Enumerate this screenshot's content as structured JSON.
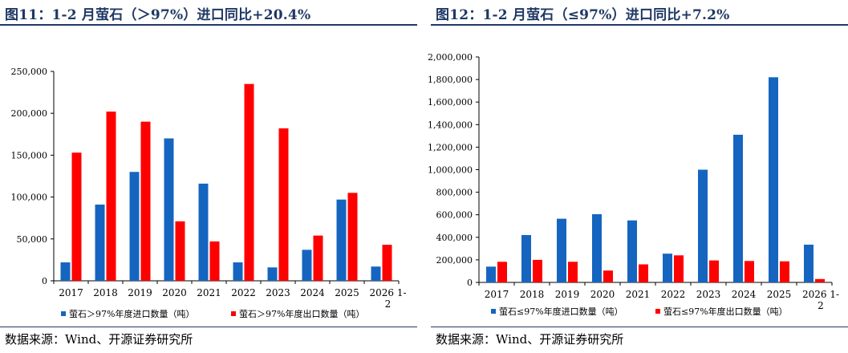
{
  "colors": {
    "blue": "#1565C0",
    "red": "#FF0000",
    "title": "#1f3864"
  },
  "left": {
    "fig_title": "图11：1-2 月萤石（＞97%）进口同比+20.4%",
    "source": "数据来源：Wind、开源证券研究所",
    "chart_data": {
      "type": "bar",
      "categories": [
        "2017",
        "2018",
        "2019",
        "2020",
        "2021",
        "2022",
        "2023",
        "2024",
        "2025",
        "2026 1-2"
      ],
      "series": [
        {
          "name": "萤石＞97%年度进口数量（吨）",
          "values": [
            22000,
            91000,
            130000,
            170000,
            116000,
            22000,
            16000,
            37000,
            97000,
            17000
          ]
        },
        {
          "name": "萤石＞97%年度出口数量（吨）",
          "values": [
            153000,
            202000,
            190000,
            71000,
            47000,
            235000,
            182000,
            54000,
            105000,
            43000
          ]
        }
      ],
      "ylim": [
        0,
        250000
      ],
      "yticks": [
        "0",
        "50,000",
        "100,000",
        "150,000",
        "200,000",
        "250,000"
      ],
      "grid": false,
      "legend_position": "bottom"
    }
  },
  "right": {
    "fig_title": "图12：1-2 月萤石（≤97%）进口同比+7.2%",
    "source": "数据来源：Wind、开源证券研究所",
    "chart_data": {
      "type": "bar",
      "categories": [
        "2017",
        "2018",
        "2019",
        "2020",
        "2021",
        "2022",
        "2023",
        "2024",
        "2025",
        "2026 1-2"
      ],
      "series": [
        {
          "name": "萤石≤97%年度进口数量（吨）",
          "values": [
            140000,
            420000,
            565000,
            605000,
            550000,
            255000,
            1000000,
            1310000,
            1820000,
            335000
          ]
        },
        {
          "name": "萤石≤97%年度出口数量（吨）",
          "values": [
            183000,
            200000,
            183000,
            105000,
            160000,
            240000,
            195000,
            190000,
            187000,
            30000
          ]
        }
      ],
      "ylim": [
        0,
        2000000
      ],
      "yticks": [
        "0",
        "200,000",
        "400,000",
        "600,000",
        "800,000",
        "1,000,000",
        "1,200,000",
        "1,400,000",
        "1,600,000",
        "1,800,000",
        "2,000,000"
      ],
      "grid": false,
      "legend_position": "bottom"
    }
  }
}
